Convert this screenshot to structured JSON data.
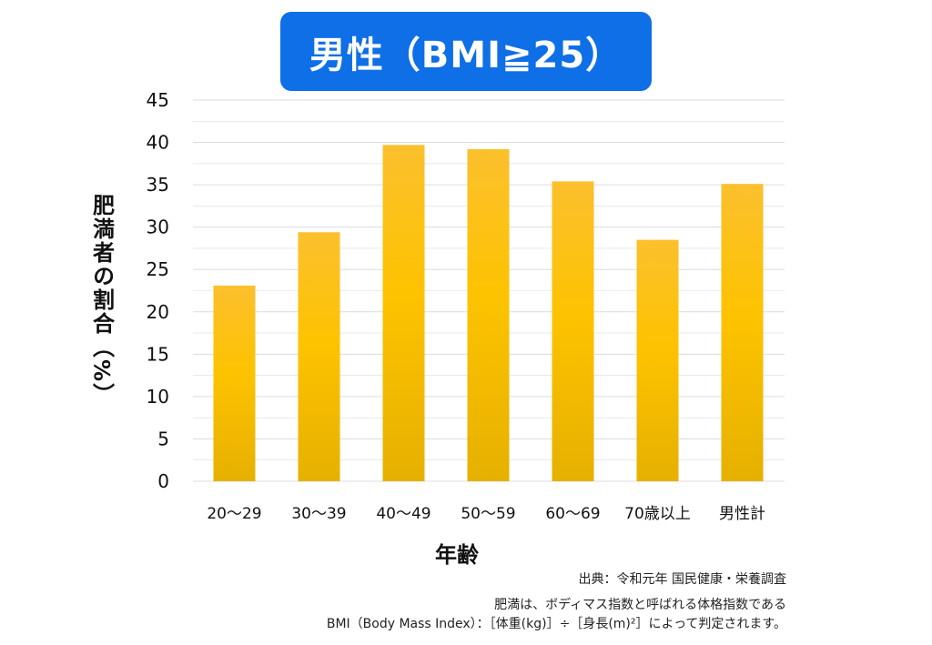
{
  "title": "男性（BMI≧25）",
  "chart_data": {
    "type": "bar",
    "title": "男性（BMI≧25）",
    "ylabel": "肥満者の割合（%）",
    "xlabel": "年齢",
    "categories": [
      "20～29",
      "30～39",
      "40～49",
      "50～59",
      "60～69",
      "70歳以上",
      "男性計"
    ],
    "values": [
      23.1,
      29.4,
      39.7,
      39.2,
      35.4,
      28.5,
      35.1
    ],
    "ylim": [
      0,
      45
    ],
    "yticks": [
      0,
      5,
      10,
      15,
      20,
      25,
      30,
      35,
      40,
      45
    ],
    "grid": true,
    "legend": "none",
    "bar_color_top": "#fbc02d",
    "bar_color_mid": "#fdc300",
    "bar_color_bottom": "#e6b000",
    "grid_color": "#dcdcdc"
  },
  "footnotes": {
    "source": "出典：令和元年 国民健康・栄養調査",
    "line1": "肥満は、ボディマス指数と呼ばれる体格指数である",
    "line2": "BMI（Body Mass Index）：［体重(kg)］÷［身長(m)²］によって判定されます。"
  }
}
